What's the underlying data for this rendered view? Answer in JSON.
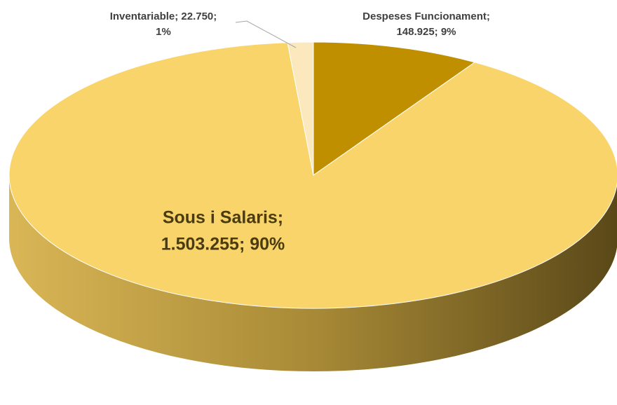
{
  "chart_data": {
    "type": "pie",
    "values": [
      148925,
      1503255,
      22750
    ],
    "value_labels": [
      [
        "Despeses Funcionament;",
        "148.925; 9%"
      ],
      [
        "Sous i Salaris;",
        "1.503.255; 90%"
      ],
      [
        "Inventariable; 22.750;",
        "1%"
      ]
    ],
    "colors": [
      "#bf8f00",
      "#f8d46a",
      "#fbe8bc"
    ]
  }
}
